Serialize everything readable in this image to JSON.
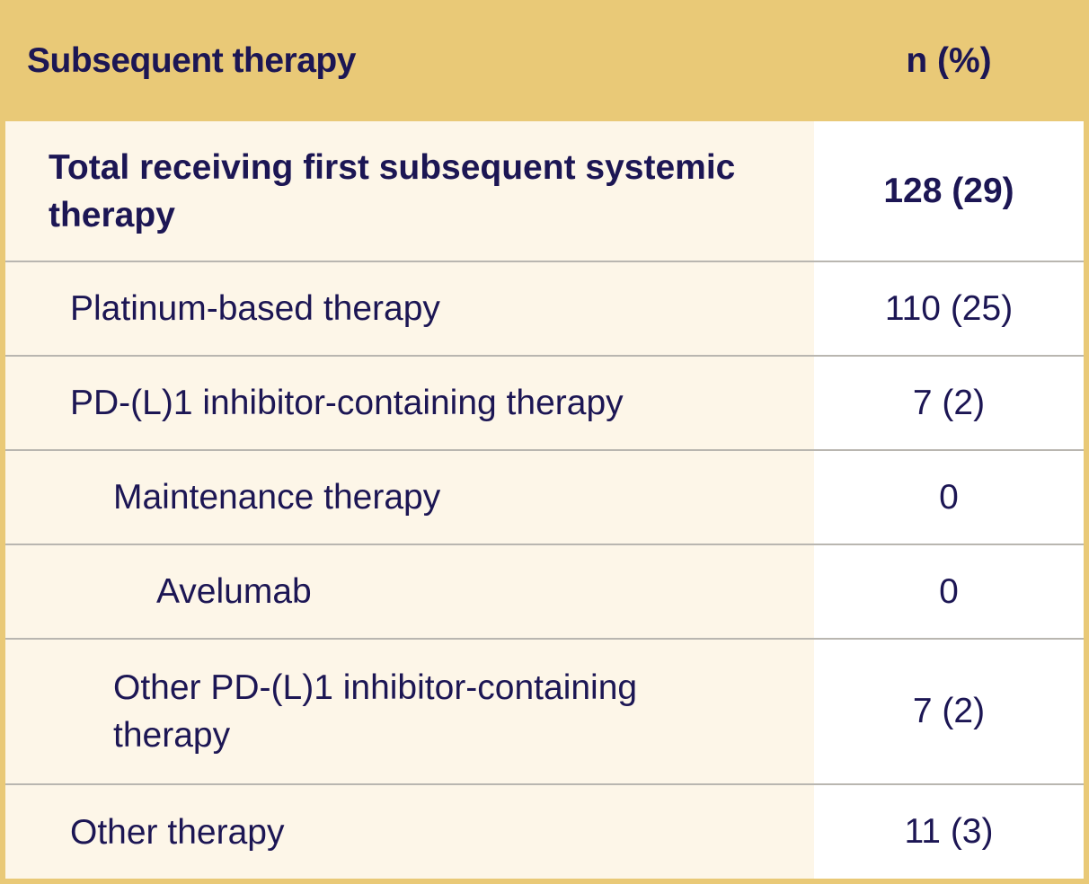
{
  "header": {
    "label": "Subsequent therapy",
    "value": "n (%)"
  },
  "rows": [
    {
      "label": "Total receiving first subsequent systemic therapy",
      "value": "128 (29)"
    },
    {
      "label": "Platinum-based therapy",
      "value": "110 (25)"
    },
    {
      "label": "PD-(L)1 inhibitor-containing therapy",
      "value": "7 (2)"
    },
    {
      "label": "Maintenance therapy",
      "value": "0"
    },
    {
      "label": "Avelumab",
      "value": "0"
    },
    {
      "label": "Other PD-(L)1 inhibitor-containing therapy",
      "value": "7 (2)"
    },
    {
      "label": "Other therapy",
      "value": "11 (3)"
    }
  ],
  "colors": {
    "header_background": "#e9c977",
    "label_cell_background": "#fdf6e8",
    "value_cell_background": "#ffffff",
    "text": "#1c1654",
    "divider": "#b9b6b0"
  }
}
